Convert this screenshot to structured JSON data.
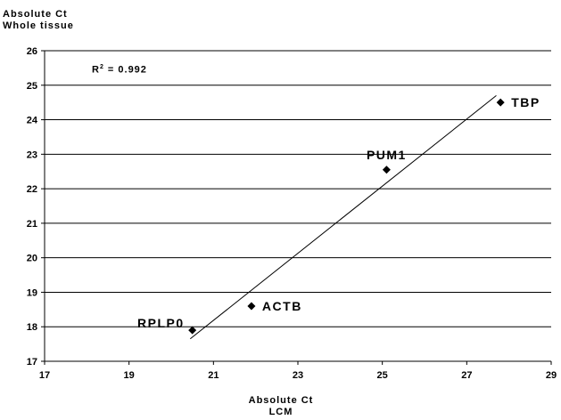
{
  "chart_data": {
    "type": "scatter",
    "title": "",
    "ylabel_lines": [
      "Absolute Ct",
      "Whole tissue"
    ],
    "xlabel_lines": [
      "Absolute Ct",
      "LCM"
    ],
    "xlim": [
      17,
      29
    ],
    "ylim": [
      17,
      26
    ],
    "xticks": [
      17,
      19,
      21,
      23,
      25,
      27,
      29
    ],
    "yticks": [
      17,
      18,
      19,
      20,
      21,
      22,
      23,
      24,
      25,
      26
    ],
    "grid": "horizontal",
    "annotation": {
      "r2_prefix": "R",
      "r2_sup": "2",
      "r2_value": " = 0.992"
    },
    "points": [
      {
        "label": "RPLP0",
        "x": 20.5,
        "y": 17.9,
        "label_side": "left"
      },
      {
        "label": "ACTB",
        "x": 21.9,
        "y": 18.6,
        "label_side": "right"
      },
      {
        "label": "PUM1",
        "x": 25.1,
        "y": 22.55,
        "label_side": "above"
      },
      {
        "label": "TBP",
        "x": 27.8,
        "y": 24.5,
        "label_side": "right"
      }
    ],
    "trendline": {
      "x_start": 20.45,
      "y_start": 17.65,
      "x_end": 27.7,
      "y_end": 24.7
    },
    "colors": {
      "axis": "#000000",
      "grid": "#000000",
      "marker": "#000000"
    }
  }
}
